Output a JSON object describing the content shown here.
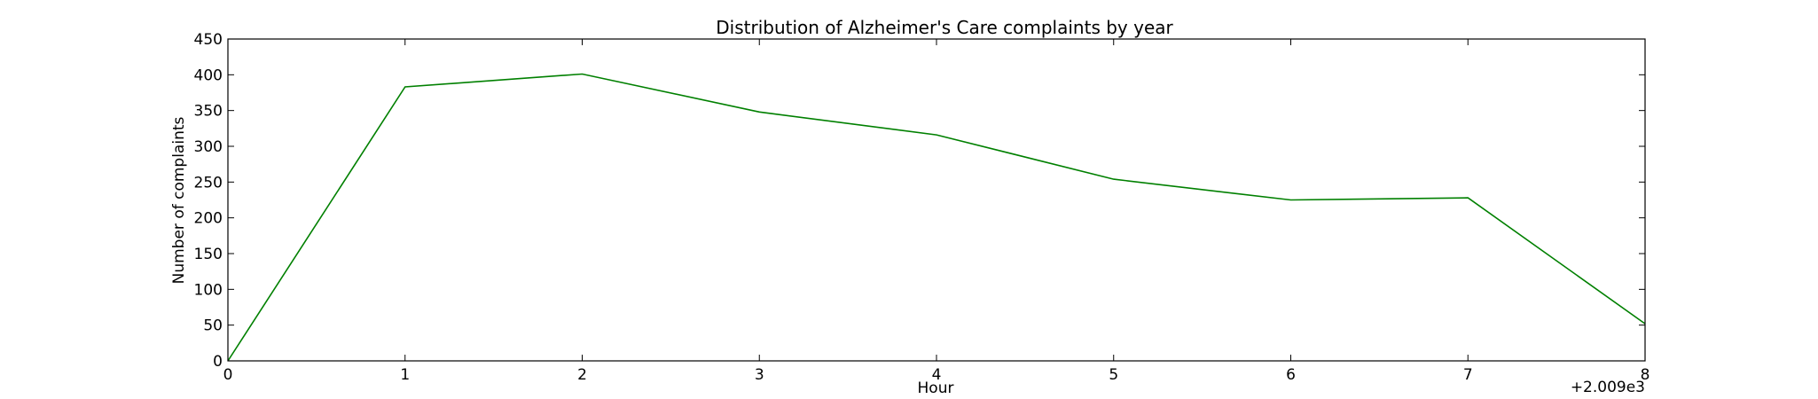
{
  "chart_data": {
    "type": "line",
    "title": "Distribution of  Alzheimer's Care complaints by year",
    "xlabel": "Hour",
    "ylabel": "Number of complaints",
    "x_offset_label": "+2.009e3",
    "xlim": [
      0,
      8
    ],
    "ylim": [
      0,
      450
    ],
    "x_ticks": [
      "0",
      "1",
      "2",
      "3",
      "4",
      "5",
      "6",
      "7",
      "8"
    ],
    "y_ticks": [
      "0",
      "50",
      "100",
      "150",
      "200",
      "250",
      "300",
      "350",
      "400",
      "450"
    ],
    "grid": false,
    "legend": "none",
    "series": [
      {
        "color": "#008000",
        "points": [
          {
            "x": 0,
            "y": 0
          },
          {
            "x": 1,
            "y": 383
          },
          {
            "x": 2,
            "y": 401
          },
          {
            "x": 3,
            "y": 348
          },
          {
            "x": 4,
            "y": 316
          },
          {
            "x": 5,
            "y": 254
          },
          {
            "x": 6,
            "y": 225
          },
          {
            "x": 7,
            "y": 228
          },
          {
            "x": 8,
            "y": 52
          }
        ]
      }
    ]
  }
}
